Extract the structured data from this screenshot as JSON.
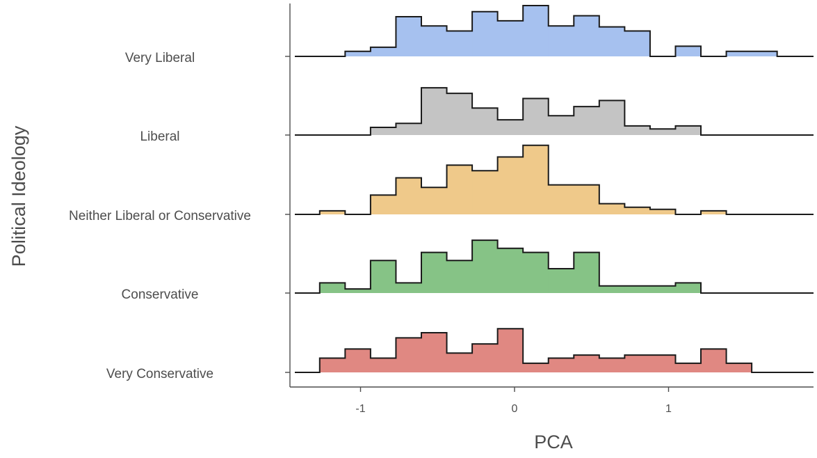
{
  "chart_data": {
    "type": "area",
    "subtype": "ridgeline-histogram",
    "title": "",
    "xlabel": "PCA",
    "ylabel": "Political Ideology",
    "xlim": [
      -1.42,
      1.95
    ],
    "x_ticks": [
      -1,
      0,
      1
    ],
    "x_tick_labels": [
      "-1",
      "0",
      "1"
    ],
    "grid": false,
    "legend": "none",
    "bin_edges": [
      -1.265,
      -1.1,
      -0.935,
      -0.77,
      -0.605,
      -0.44,
      -0.275,
      -0.11,
      0.055,
      0.22,
      0.385,
      0.55,
      0.715,
      0.88,
      1.045,
      1.21,
      1.375,
      1.54,
      1.705,
      1.87
    ],
    "series": [
      {
        "name": "Very Liberal",
        "color": "#a6c1ef",
        "values": [
          0,
          0.1,
          0.18,
          0.78,
          0.6,
          0.5,
          0.88,
          0.7,
          1.0,
          0.6,
          0.8,
          0.58,
          0.5,
          0,
          0.2,
          0,
          0.1,
          0.1,
          0
        ]
      },
      {
        "name": "Liberal",
        "color": "#c4c4c4",
        "values": [
          0,
          0,
          0.15,
          0.23,
          0.93,
          0.82,
          0.53,
          0.3,
          0.72,
          0.38,
          0.56,
          0.68,
          0.18,
          0.12,
          0.18,
          0,
          0,
          0,
          0
        ]
      },
      {
        "name": "Neither Liberal or Conservative",
        "color": "#efc98a",
        "values": [
          0.07,
          0,
          0.38,
          0.72,
          0.53,
          0.97,
          0.86,
          1.13,
          1.36,
          0.58,
          0.58,
          0.21,
          0.14,
          0.1,
          0,
          0.07,
          0,
          0,
          0
        ]
      },
      {
        "name": "Conservative",
        "color": "#86c386",
        "values": [
          0.2,
          0.08,
          0.64,
          0.2,
          0.8,
          0.64,
          1.04,
          0.88,
          0.8,
          0.48,
          0.8,
          0.14,
          0.14,
          0.14,
          0.2,
          0,
          0,
          0,
          0
        ]
      },
      {
        "name": "Very Conservative",
        "color": "#e08882",
        "values": [
          0.28,
          0.46,
          0.28,
          0.68,
          0.78,
          0.38,
          0.56,
          0.86,
          0.18,
          0.28,
          0.34,
          0.28,
          0.34,
          0.34,
          0.18,
          0.46,
          0.18,
          0,
          0
        ]
      }
    ]
  }
}
